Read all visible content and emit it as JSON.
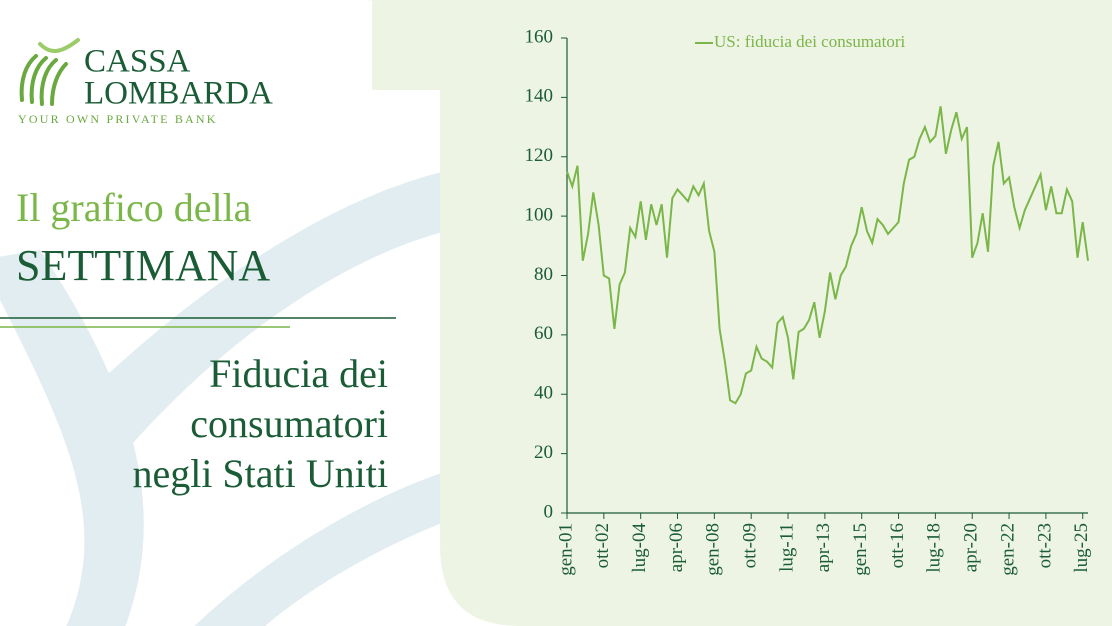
{
  "brand": {
    "name_1": "CASSA",
    "name_2": "LOMBARDA",
    "tagline": "YOUR OWN PRIVATE BANK"
  },
  "heading": {
    "line_1": "Il grafico della",
    "line_2": "SETTIMANA"
  },
  "subtitle": [
    "Fiducia dei",
    "consumatori",
    "negli Stati Uniti"
  ],
  "chart_data": {
    "type": "line",
    "categories": [
      "gen-01",
      null,
      null,
      null,
      null,
      null,
      null,
      "ott-02",
      null,
      null,
      null,
      null,
      null,
      null,
      "lug-04",
      null,
      null,
      null,
      null,
      null,
      null,
      "apr-06",
      null,
      null,
      null,
      null,
      null,
      null,
      "gen-08",
      null,
      null,
      null,
      null,
      null,
      null,
      "ott-09",
      null,
      null,
      null,
      null,
      null,
      null,
      "lug-11",
      null,
      null,
      null,
      null,
      null,
      null,
      "apr-13",
      null,
      null,
      null,
      null,
      null,
      null,
      "gen-15",
      null,
      null,
      null,
      null,
      null,
      null,
      "ott-16",
      null,
      null,
      null,
      null,
      null,
      null,
      "lug-18",
      null,
      null,
      null,
      null,
      null,
      null,
      "apr-20",
      null,
      null,
      null,
      null,
      null,
      null,
      "gen-22",
      null,
      null,
      null,
      null,
      null,
      null,
      "ott-23",
      null,
      null,
      null,
      null,
      null,
      null,
      "lug-25",
      null
    ],
    "series": [
      {
        "name": "US: fiducia dei consumatori",
        "color": "#7ab648",
        "values": [
          115,
          110,
          117,
          85,
          94,
          108,
          97,
          80,
          79,
          62,
          77,
          81,
          96,
          93,
          105,
          92,
          104,
          97,
          104,
          86,
          106,
          109,
          107,
          105,
          110,
          107,
          111,
          95,
          88,
          62,
          51,
          38,
          37,
          40,
          47,
          48,
          56,
          52,
          51,
          49,
          64,
          66,
          59,
          45,
          61,
          62,
          65,
          71,
          59,
          68,
          81,
          72,
          80,
          83,
          90,
          94,
          103,
          95,
          91,
          99,
          97,
          94,
          96,
          98,
          111,
          119,
          120,
          126,
          130,
          125,
          127,
          137,
          121,
          129,
          135,
          126,
          130,
          86,
          91,
          101,
          88,
          117,
          125,
          111,
          113,
          103,
          96,
          102,
          106,
          110,
          114,
          102,
          110,
          101,
          101,
          109,
          105,
          86,
          98,
          85
        ]
      }
    ],
    "ylim": [
      0,
      160
    ],
    "yticks": [
      0,
      20,
      40,
      60,
      80,
      100,
      120,
      140,
      160
    ],
    "legend": "top"
  }
}
